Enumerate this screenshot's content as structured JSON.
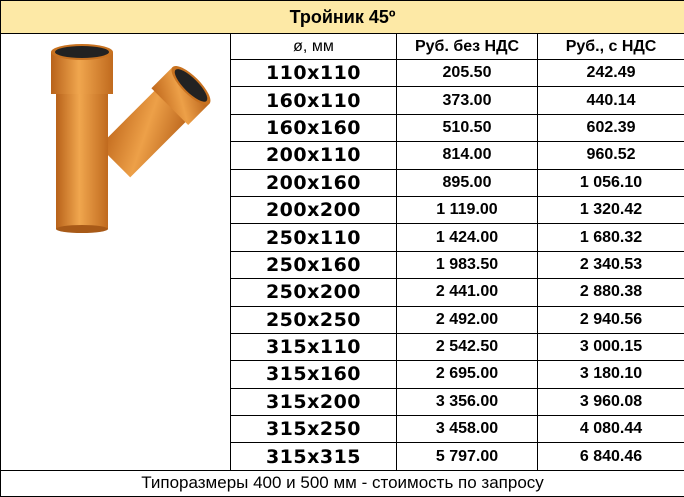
{
  "title": "Тройник 45º",
  "table": {
    "header": [
      "ø, мм",
      "Руб. без НДС",
      "Руб., с НДС"
    ],
    "rows": [
      [
        "110x110",
        "205.50",
        "242.49"
      ],
      [
        "160x110",
        "373.00",
        "440.14"
      ],
      [
        "160x160",
        "510.50",
        "602.39"
      ],
      [
        "200x110",
        "814.00",
        "960.52"
      ],
      [
        "200x160",
        "895.00",
        "1 056.10"
      ],
      [
        "200x200",
        "1 119.00",
        "1 320.42"
      ],
      [
        "250x110",
        "1 424.00",
        "1 680.32"
      ],
      [
        "250x160",
        "1 983.50",
        "2 340.53"
      ],
      [
        "250x200",
        "2 441.00",
        "2 880.38"
      ],
      [
        "250x250",
        "2 492.00",
        "2 940.56"
      ],
      [
        "315x110",
        "2 542.50",
        "3 000.15"
      ],
      [
        "315x160",
        "2 695.00",
        "3 180.10"
      ],
      [
        "315x200",
        "3 356.00",
        "3 960.08"
      ],
      [
        "315x250",
        "3 458.00",
        "4 080.44"
      ],
      [
        "315x315",
        "5 797.00",
        "6 840.46"
      ]
    ]
  },
  "footer": "Типоразмеры 400 и 500 мм - стоимость по запросу"
}
